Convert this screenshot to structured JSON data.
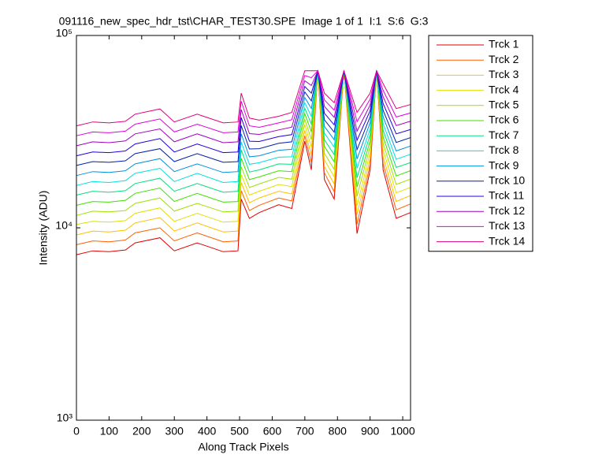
{
  "chart_data": {
    "type": "line",
    "title": "091116_new_spec_hdr_tst\\CHAR_TEST30.SPE  Image 1 of 1  I:1  S:6  G:3",
    "xlabel": "Along Track Pixels",
    "ylabel": "Intensity (ADU)",
    "yscale": "log",
    "grid": false,
    "legend": "outside-right",
    "xlim": [
      0,
      1024
    ],
    "xticks": [
      0,
      100,
      200,
      300,
      400,
      500,
      600,
      700,
      800,
      900,
      1000
    ],
    "ylim": [
      1000,
      100000
    ],
    "yticks": [
      {
        "value": 1000,
        "label": "10³"
      },
      {
        "value": 10000,
        "label": "10⁴"
      },
      {
        "value": 100000,
        "label": "10⁵"
      }
    ],
    "x": [
      0,
      50,
      100,
      150,
      180,
      256,
      300,
      370,
      450,
      495,
      505,
      530,
      560,
      620,
      660,
      700,
      720,
      740,
      760,
      790,
      820,
      860,
      900,
      920,
      940,
      980,
      1023
    ],
    "series": [
      {
        "name": "Trck 1",
        "color": "#e00000",
        "values": [
          7250,
          7590,
          7510,
          7670,
          8350,
          8880,
          7590,
          8350,
          7510,
          7590,
          14100,
          11200,
          12000,
          13200,
          12600,
          28200,
          20000,
          65500,
          17800,
          14100,
          65500,
          9330,
          20000,
          65500,
          20000,
          11200,
          12000
        ]
      },
      {
        "name": "Trck 2",
        "color": "#ff6000",
        "values": [
          8170,
          8550,
          8460,
          8640,
          9410,
          10000,
          8550,
          9410,
          8460,
          8550,
          15600,
          12300,
          13100,
          14300,
          13800,
          30100,
          21900,
          65500,
          19300,
          15400,
          65500,
          10400,
          21400,
          65500,
          21600,
          12400,
          13300
        ]
      },
      {
        "name": "Trck 3",
        "color": "#ffc000",
        "values": [
          9190,
          9620,
          9520,
          9720,
          10600,
          11300,
          9620,
          10600,
          9520,
          9620,
          17200,
          13500,
          14300,
          15500,
          15000,
          32100,
          24000,
          65500,
          20800,
          16900,
          65500,
          11700,
          23000,
          65500,
          23400,
          13700,
          14700
        ]
      },
      {
        "name": "Trck 4",
        "color": "#e0e000",
        "values": [
          10400,
          10800,
          10700,
          10900,
          11900,
          12700,
          10800,
          11900,
          10700,
          10800,
          18900,
          14800,
          15500,
          16800,
          16400,
          34400,
          26300,
          65500,
          22600,
          18400,
          65500,
          13000,
          24700,
          65500,
          25400,
          15200,
          16200
        ]
      },
      {
        "name": "Trck 5",
        "color": "#a0e000",
        "values": [
          11600,
          12200,
          12100,
          12300,
          13400,
          14300,
          12200,
          13400,
          12100,
          12200,
          20800,
          16200,
          16900,
          18300,
          17900,
          36600,
          28800,
          65500,
          24400,
          20100,
          65500,
          14600,
          26500,
          65500,
          27400,
          16800,
          17900
        ]
      },
      {
        "name": "Trck 6",
        "color": "#40e000",
        "values": [
          13100,
          13700,
          13600,
          13900,
          15100,
          16100,
          13700,
          15100,
          13600,
          13700,
          23000,
          17800,
          18400,
          19800,
          19600,
          39200,
          31600,
          65500,
          26500,
          22000,
          65500,
          16300,
          28400,
          65500,
          29700,
          18600,
          19800
        ]
      },
      {
        "name": "Trck 7",
        "color": "#00e080",
        "values": [
          14800,
          15500,
          15300,
          15600,
          17000,
          18100,
          15500,
          17000,
          15300,
          15500,
          25400,
          19500,
          20000,
          21500,
          21400,
          41800,
          34700,
          65500,
          28700,
          24000,
          65500,
          18200,
          30500,
          65500,
          32200,
          20600,
          21800
        ]
      },
      {
        "name": "Trck 8",
        "color": "#00e0e0",
        "values": [
          16600,
          17400,
          17200,
          17600,
          19200,
          20400,
          17400,
          19200,
          17200,
          17400,
          27900,
          21400,
          21800,
          23300,
          23400,
          44700,
          38000,
          65500,
          31000,
          26300,
          65500,
          20400,
          32700,
          65500,
          34800,
          22700,
          24100
        ]
      },
      {
        "name": "Trck 9",
        "color": "#0090e0",
        "values": [
          18700,
          19600,
          19400,
          19800,
          21500,
          22900,
          19600,
          21500,
          19400,
          19600,
          30800,
          23400,
          23700,
          25300,
          25600,
          47600,
          41700,
          65500,
          33700,
          28700,
          65500,
          22800,
          35200,
          65500,
          37800,
          25100,
          26600
        ]
      },
      {
        "name": "Trck 10",
        "color": "#0020b0",
        "values": [
          21100,
          22100,
          21900,
          22300,
          24300,
          25800,
          22100,
          24300,
          21900,
          22100,
          34000,
          25700,
          25800,
          27500,
          28000,
          50900,
          45700,
          65500,
          36400,
          31400,
          65500,
          25500,
          37800,
          65500,
          40800,
          27800,
          29400
        ]
      },
      {
        "name": "Trck 11",
        "color": "#2000e0",
        "values": [
          23700,
          24800,
          24600,
          25100,
          27300,
          29100,
          24800,
          27300,
          24600,
          24800,
          37400,
          28200,
          28100,
          29800,
          30500,
          54300,
          50100,
          65500,
          39400,
          34300,
          65500,
          28500,
          40600,
          65500,
          44300,
          30800,
          32400
        ]
      },
      {
        "name": "Trck 12",
        "color": "#a000c0",
        "values": [
          26700,
          28000,
          27700,
          28300,
          30800,
          32700,
          28000,
          30800,
          27700,
          28000,
          41200,
          30900,
          30600,
          32300,
          33400,
          58100,
          55000,
          65500,
          42800,
          37500,
          65500,
          31800,
          43500,
          65500,
          48000,
          34000,
          35800
        ]
      },
      {
        "name": "Trck 13",
        "color": "#e000e0",
        "values": [
          30100,
          31500,
          31200,
          31800,
          34600,
          36800,
          31500,
          34600,
          31200,
          31500,
          45500,
          33900,
          33300,
          35100,
          36500,
          61900,
          60300,
          65500,
          46200,
          40900,
          65500,
          35600,
          46700,
          65500,
          51900,
          37700,
          39500
        ]
      },
      {
        "name": "Trck 14",
        "color": "#e00080",
        "values": [
          33900,
          35500,
          35100,
          35800,
          39000,
          41500,
          35500,
          39000,
          35100,
          35500,
          50100,
          37200,
          36300,
          38000,
          39800,
          65500,
          65500,
          65500,
          50100,
          44700,
          65500,
          39800,
          50100,
          65500,
          56200,
          41700,
          43700
        ]
      }
    ]
  }
}
